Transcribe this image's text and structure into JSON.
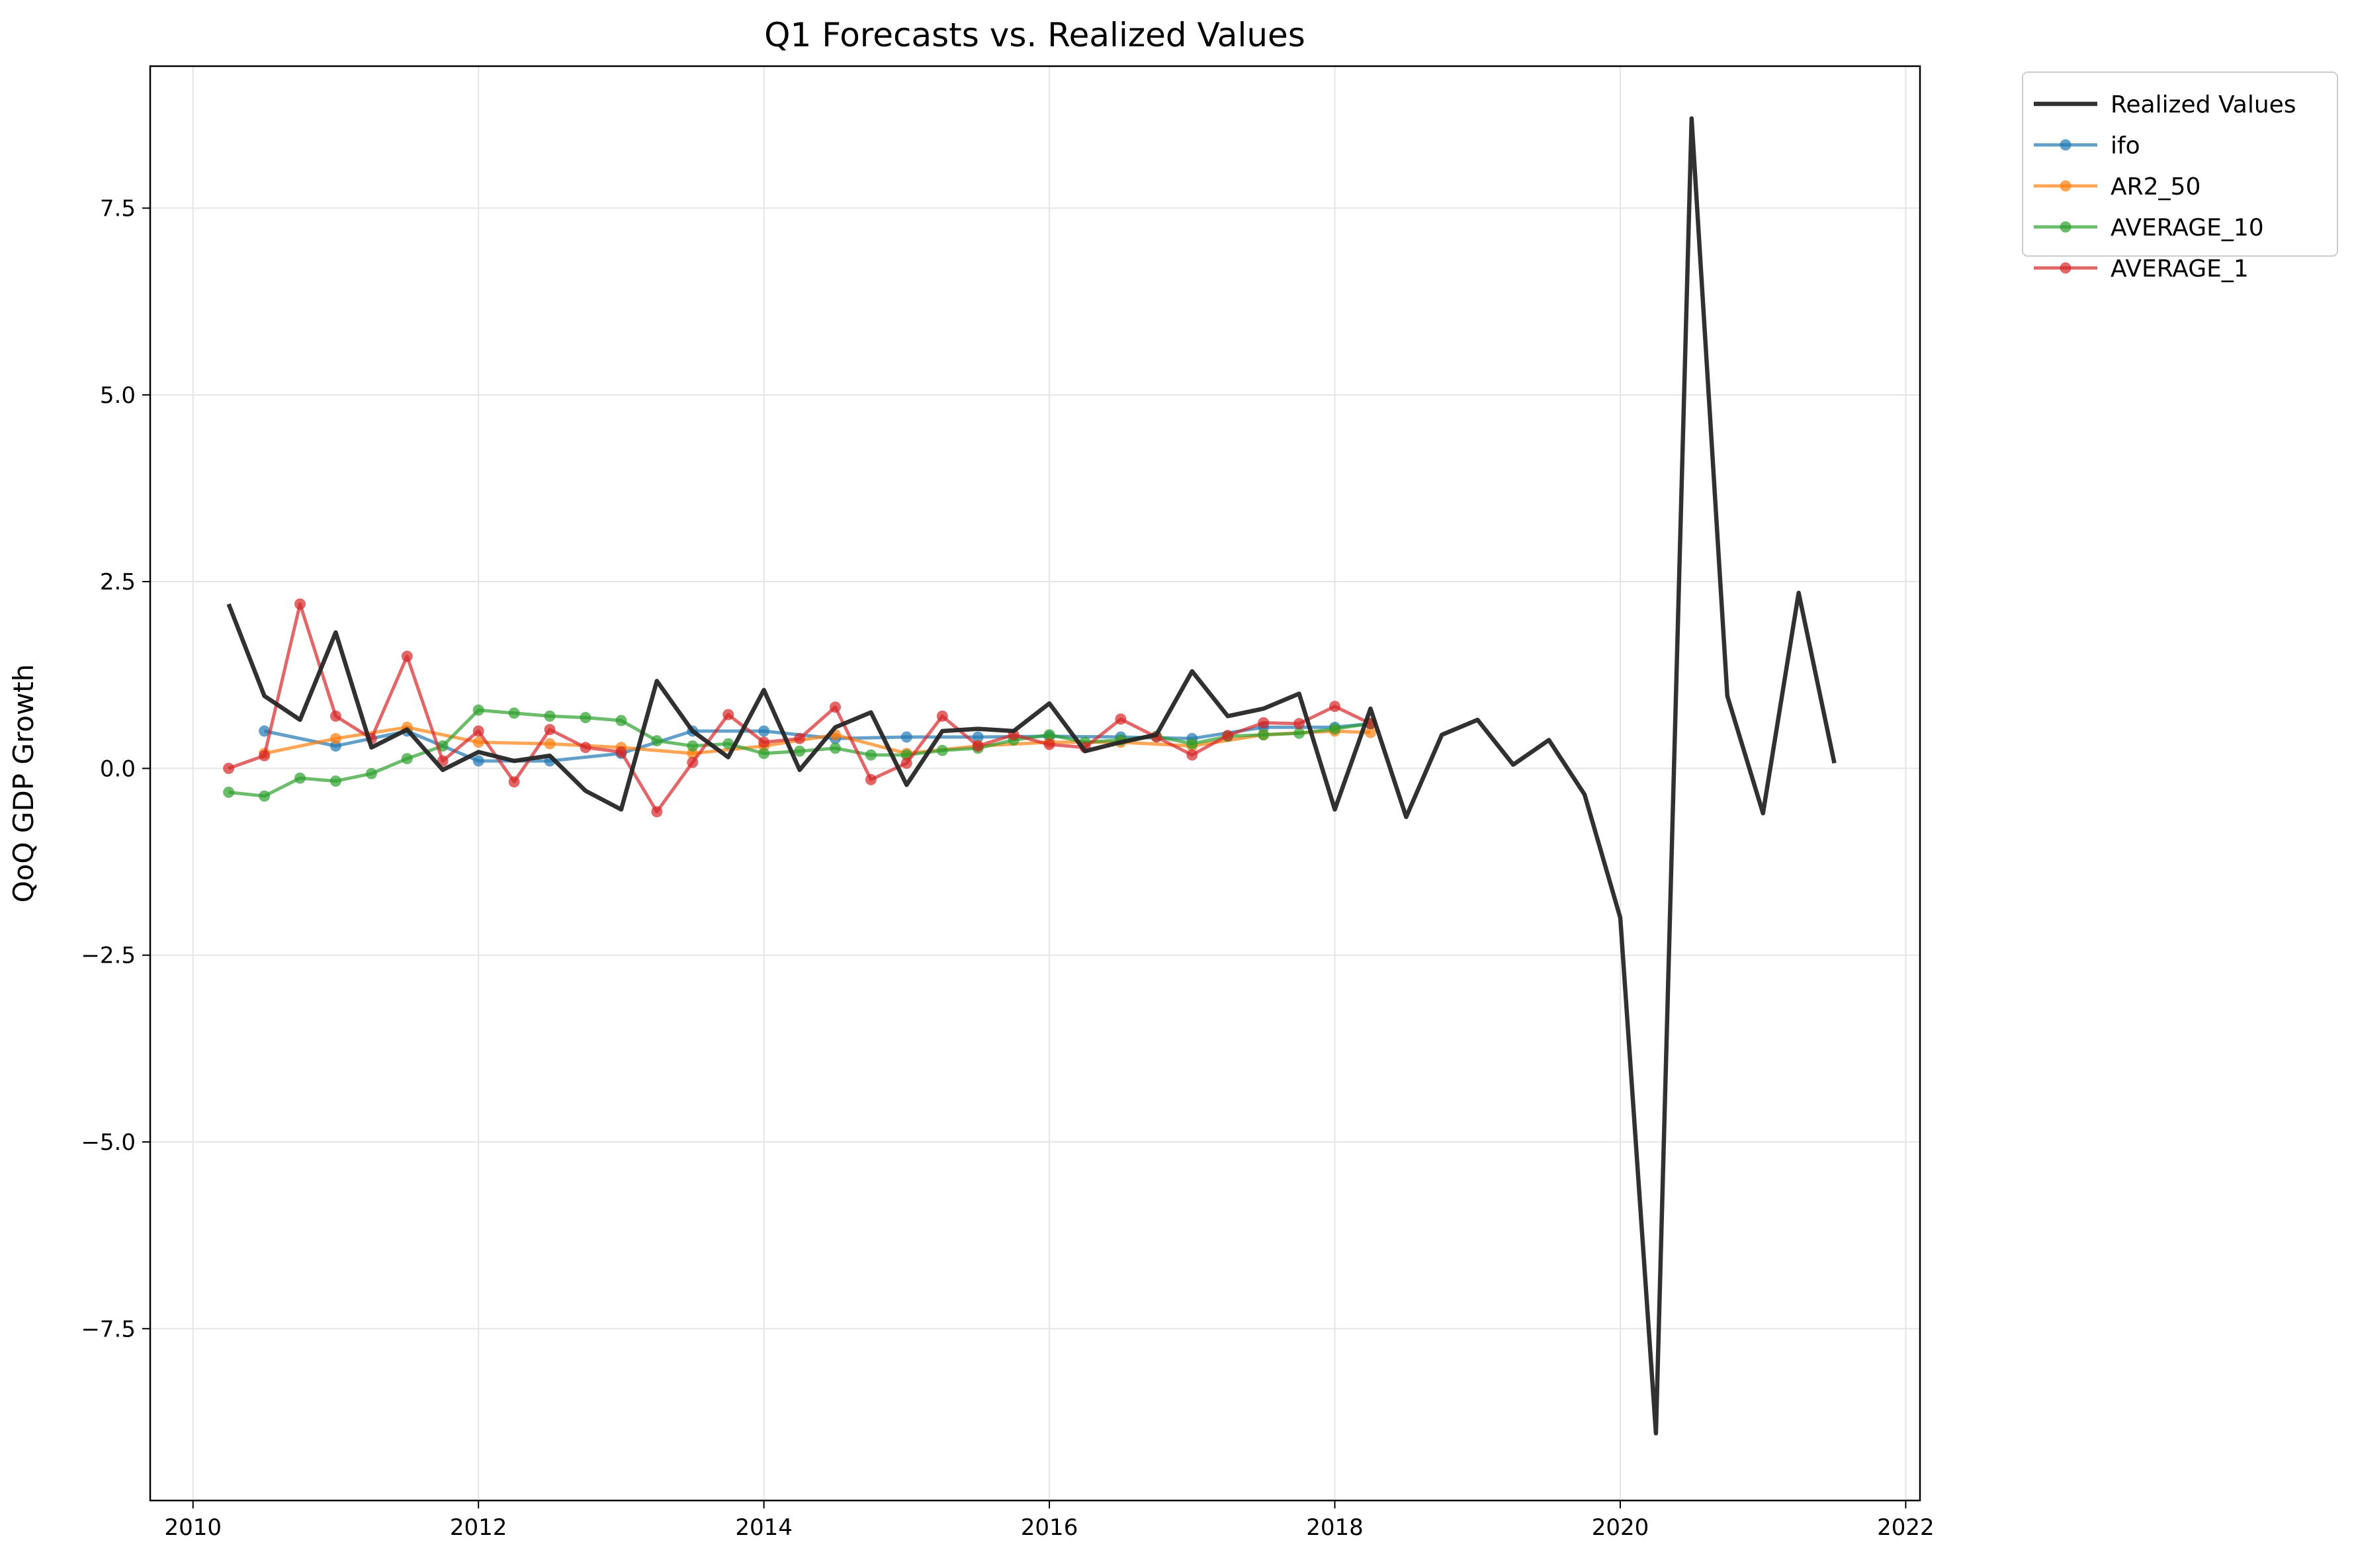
{
  "chart_data": {
    "type": "line",
    "title": "Q1 Forecasts vs. Realized Values",
    "xlabel": "",
    "ylabel": "QoQ GDP Growth",
    "xlim": [
      2009.7,
      2022.1
    ],
    "ylim": [
      -9.8,
      9.4
    ],
    "xticks": [
      2010,
      2012,
      2014,
      2016,
      2018,
      2020,
      2022
    ],
    "xtick_labels": [
      "2010",
      "2012",
      "2014",
      "2016",
      "2018",
      "2020",
      "2022"
    ],
    "yticks": [
      7.5,
      5.0,
      2.5,
      0.0,
      -2.5,
      -5.0,
      -7.5
    ],
    "ytick_labels": [
      "7.5",
      "5.0",
      "2.5",
      "0.0",
      "−2.5",
      "−5.0",
      "−7.5"
    ],
    "grid": true,
    "legend_position": "outside-top-right",
    "series": [
      {
        "name": "Realized Values",
        "color": "#262626",
        "markers": false,
        "x": [
          2010.25,
          2010.5,
          2010.75,
          2011.0,
          2011.25,
          2011.5,
          2011.75,
          2012.0,
          2012.25,
          2012.5,
          2012.75,
          2013.0,
          2013.25,
          2013.5,
          2013.75,
          2014.0,
          2014.25,
          2014.5,
          2014.75,
          2015.0,
          2015.25,
          2015.5,
          2015.75,
          2016.0,
          2016.25,
          2016.5,
          2016.75,
          2017.0,
          2017.25,
          2017.5,
          2017.75,
          2018.0,
          2018.25,
          2018.5,
          2018.75,
          2019.0,
          2019.25,
          2019.5,
          2019.75,
          2020.0,
          2020.25,
          2020.5,
          2020.75,
          2021.0,
          2021.25,
          2021.5
        ],
        "values": [
          2.2,
          0.97,
          0.65,
          1.82,
          0.28,
          0.52,
          -0.02,
          0.22,
          0.1,
          0.17,
          -0.3,
          -0.55,
          1.17,
          0.5,
          0.15,
          1.05,
          -0.02,
          0.55,
          0.75,
          -0.22,
          0.5,
          0.53,
          0.5,
          0.87,
          0.23,
          0.35,
          0.45,
          1.3,
          0.7,
          0.8,
          1.0,
          -0.55,
          0.8,
          -0.65,
          0.45,
          0.65,
          0.05,
          0.38,
          -0.35,
          -2.0,
          -8.9,
          8.7,
          0.97,
          -0.6,
          2.35,
          0.07
        ]
      },
      {
        "name": "ifo",
        "color": "#1f77b4",
        "markers": true,
        "x": [
          2010.5,
          2011.0,
          2011.5,
          2012.0,
          2012.5,
          2013.0,
          2013.5,
          2014.0,
          2014.5,
          2015.0,
          2015.5,
          2016.0,
          2016.5,
          2017.0,
          2017.5,
          2018.0,
          2018.25
        ],
        "values": [
          0.5,
          0.3,
          0.5,
          0.1,
          0.1,
          0.2,
          0.5,
          0.5,
          0.4,
          0.42,
          0.42,
          0.43,
          0.42,
          0.4,
          0.55,
          0.55,
          0.6
        ]
      },
      {
        "name": "AR2_50",
        "color": "#ff7f0e",
        "markers": true,
        "x": [
          2010.5,
          2011.0,
          2011.5,
          2012.0,
          2012.5,
          2013.0,
          2013.5,
          2014.0,
          2014.5,
          2015.0,
          2015.5,
          2016.0,
          2016.5,
          2017.0,
          2017.5,
          2018.0,
          2018.25
        ],
        "values": [
          0.2,
          0.4,
          0.55,
          0.35,
          0.33,
          0.28,
          0.2,
          0.3,
          0.45,
          0.2,
          0.3,
          0.35,
          0.35,
          0.3,
          0.45,
          0.5,
          0.48
        ]
      },
      {
        "name": "AVERAGE_10",
        "color": "#2ca02c",
        "markers": true,
        "x": [
          2010.25,
          2010.5,
          2010.75,
          2011.0,
          2011.25,
          2011.5,
          2011.75,
          2012.0,
          2012.25,
          2012.5,
          2012.75,
          2013.0,
          2013.25,
          2013.5,
          2013.75,
          2014.0,
          2014.25,
          2014.5,
          2014.75,
          2015.0,
          2015.25,
          2015.5,
          2015.75,
          2016.0,
          2016.25,
          2016.5,
          2016.75,
          2017.0,
          2017.25,
          2017.5,
          2017.75,
          2018.0,
          2018.25
        ],
        "values": [
          -0.32,
          -0.37,
          -0.13,
          -0.17,
          -0.07,
          0.13,
          0.3,
          0.78,
          0.74,
          0.7,
          0.68,
          0.64,
          0.37,
          0.3,
          0.33,
          0.2,
          0.23,
          0.27,
          0.18,
          0.18,
          0.24,
          0.27,
          0.38,
          0.45,
          0.35,
          0.38,
          0.43,
          0.33,
          0.43,
          0.45,
          0.47,
          0.53,
          0.6
        ]
      },
      {
        "name": "AVERAGE_1",
        "color": "#d62728",
        "markers": true,
        "x": [
          2010.25,
          2010.5,
          2010.75,
          2011.0,
          2011.25,
          2011.5,
          2011.75,
          2012.0,
          2012.25,
          2012.5,
          2012.75,
          2013.0,
          2013.25,
          2013.5,
          2013.75,
          2014.0,
          2014.25,
          2014.5,
          2014.75,
          2015.0,
          2015.25,
          2015.5,
          2015.75,
          2016.0,
          2016.25,
          2016.5,
          2016.75,
          2017.0,
          2017.25,
          2017.5,
          2017.75,
          2018.0,
          2018.25
        ],
        "values": [
          0.0,
          0.17,
          2.2,
          0.7,
          0.4,
          1.5,
          0.1,
          0.5,
          -0.18,
          0.52,
          0.28,
          0.22,
          -0.58,
          0.08,
          0.72,
          0.35,
          0.4,
          0.82,
          -0.15,
          0.07,
          0.7,
          0.3,
          0.45,
          0.32,
          0.28,
          0.66,
          0.42,
          0.18,
          0.44,
          0.61,
          0.6,
          0.83,
          0.6
        ]
      }
    ]
  }
}
